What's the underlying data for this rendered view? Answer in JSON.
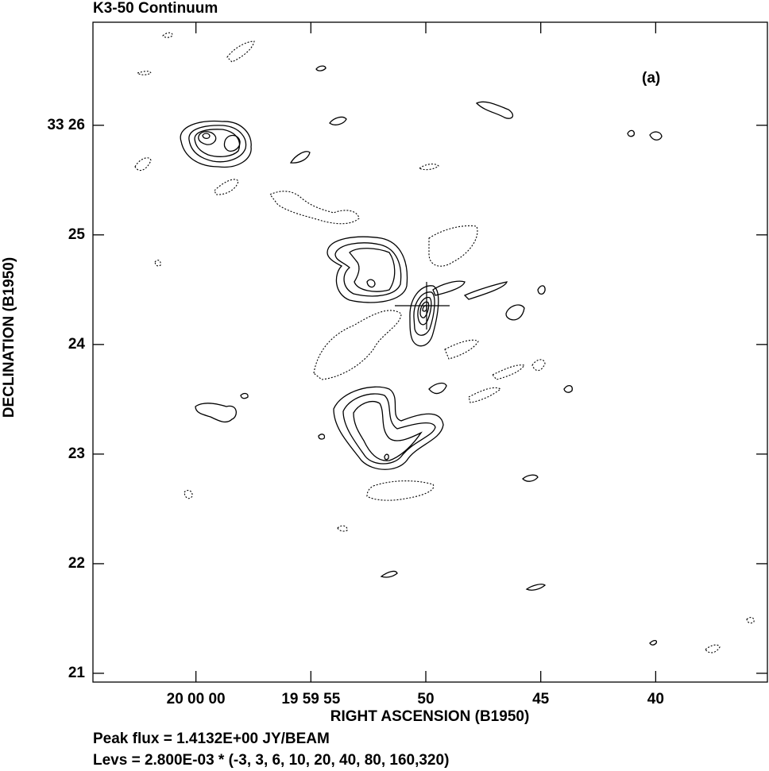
{
  "chart_data": {
    "type": "contour",
    "title": "K3-50  Continuum",
    "panel_label": "(a)",
    "xlabel": "RIGHT ASCENSION (B1950)",
    "ylabel": "DECLINATION (B1950)",
    "xlim": [
      64.48,
      35.14
    ],
    "xticks": [
      {
        "value": 60,
        "label": "20 00 00"
      },
      {
        "value": 55,
        "label": "19 59 55"
      },
      50,
      45,
      40
    ],
    "ylim": [
      20.92,
      26.94
    ],
    "yticks": [
      21,
      22,
      23,
      24,
      25,
      {
        "value": 26,
        "label": "33 26"
      }
    ],
    "notes": [
      "Peak flux =  1.4132E+00 JY/BEAM",
      "Levs = 2.800E-03 * (-3, 3, 6, 10, 20, 40, 80, 160,320)"
    ]
  }
}
